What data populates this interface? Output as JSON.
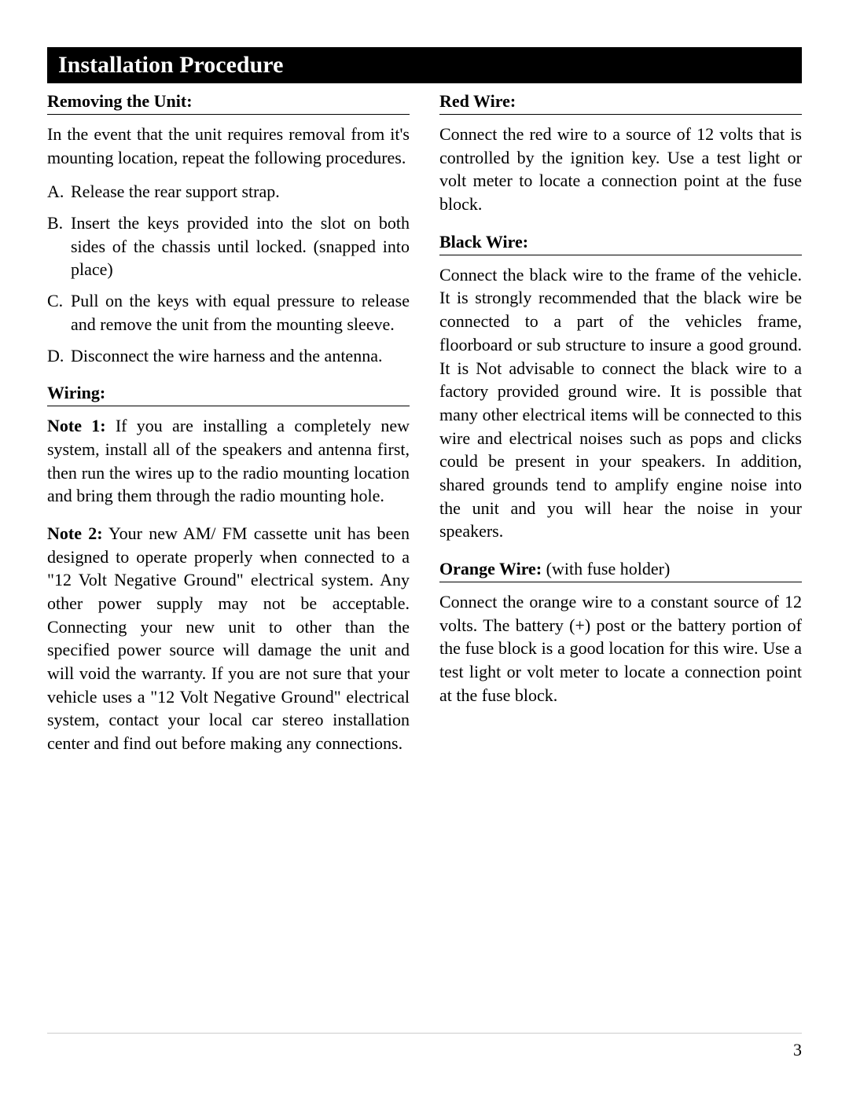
{
  "header": {
    "title": "Installation Procedure"
  },
  "left_column": {
    "section1": {
      "heading": "Removing the Unit:",
      "intro": "In the event that the unit requires removal from it's mounting location, repeat the following procedures.",
      "items": [
        {
          "marker": "A.",
          "text": "Release the rear support strap."
        },
        {
          "marker": "B.",
          "text": "Insert the keys provided into the slot on both sides of the chassis until locked. (snapped into place)"
        },
        {
          "marker": "C.",
          "text": "Pull on the keys with equal pressure to release and remove the unit from the mounting sleeve."
        },
        {
          "marker": "D.",
          "text": "Disconnect the wire harness and the antenna."
        }
      ]
    },
    "section2": {
      "heading": "Wiring:",
      "notes": [
        {
          "label": "Note 1:",
          "text": " If you are installing a completely new system, install all of the speakers and antenna first, then run the wires up to the radio mounting location and bring them through the radio mounting hole."
        },
        {
          "label": "Note 2:",
          "text": " Your new AM/ FM cassette unit has been designed to operate properly when connected to a \"12 Volt Negative Ground\" electrical system. Any other power supply may not be acceptable. Connecting your new unit to other than the specified power source will damage the unit and will void the warranty. If you are not sure that your vehicle uses a \"12 Volt Negative Ground\" electrical system, contact your local car stereo installation center and find out before making any connections."
        }
      ]
    }
  },
  "right_column": {
    "section1": {
      "heading": "Red Wire:",
      "text": "Connect the red wire to a source of 12 volts that is controlled by the ignition key. Use a test light or volt meter to locate a connection point at the fuse block."
    },
    "section2": {
      "heading": "Black Wire:",
      "text": "Connect the black wire to the frame of the vehicle. It is strongly recommended that the black wire be connected to a part of the vehicles frame, floorboard or sub structure to insure a good ground. It is Not advisable to connect the black wire to a factory provided ground wire. It is possible that many other electrical items will be connected to this wire and electrical noises such as pops and clicks could be present in your speakers. In addition, shared grounds tend to amplify engine noise into the unit and you will hear the noise in your speakers."
    },
    "section3": {
      "heading": "Orange Wire:",
      "heading_note": " (with fuse holder)",
      "text": "Connect the orange wire to a constant source of 12 volts. The battery (+) post or the battery portion of the fuse block is a good location for this wire. Use a test light or volt meter to locate a connection point at the fuse block."
    }
  },
  "page_number": "3"
}
